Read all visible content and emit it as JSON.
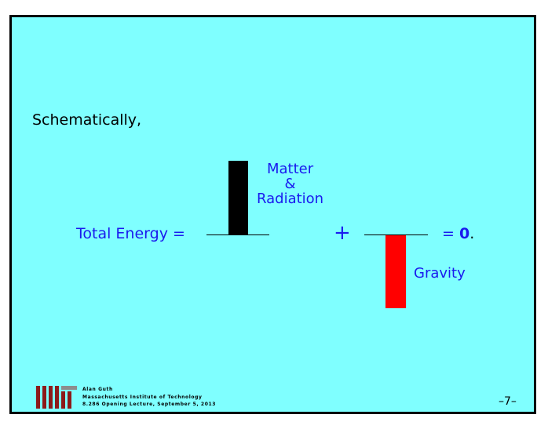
{
  "slide": {
    "intro": "Schematically,",
    "equation": {
      "lhs": "Total Energy =",
      "plus": "+",
      "rhs_equals": "= ",
      "rhs_value": "0",
      "rhs_period": "."
    },
    "terms": {
      "matter": {
        "line1": "Matter",
        "line2": "&",
        "line3": "Radiation"
      },
      "gravity": "Gravity"
    },
    "colors": {
      "background": "#7fffff",
      "text_blue": "#1a1aee",
      "matter_bar": "#000000",
      "gravity_bar": "#ff0000",
      "logo": "#8c1a1a"
    }
  },
  "footer": {
    "logo": "mit-logo",
    "author": "Alan Guth",
    "institution": "Massachusetts Institute of Technology",
    "lecture": "8.286 Opening Lecture, September 5, 2013",
    "page": "–7–"
  }
}
